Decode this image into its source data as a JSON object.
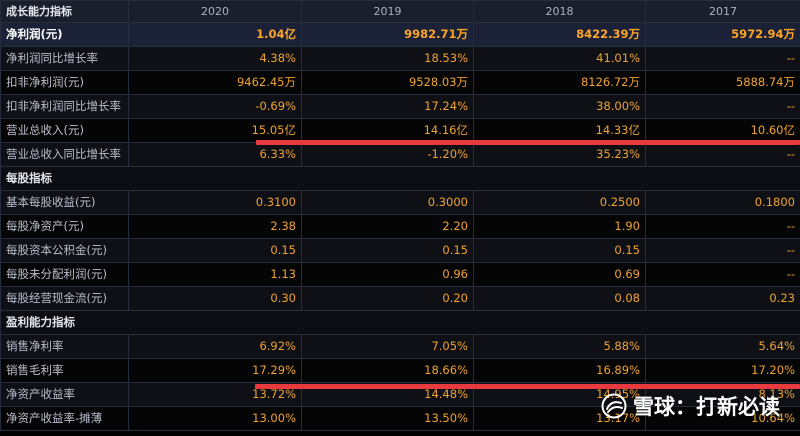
{
  "table": {
    "corner_label": "成长能力指标",
    "columns": [
      "2020",
      "2019",
      "2018",
      "2017"
    ],
    "rows": [
      {
        "type": "data",
        "highlight": true,
        "label": "净利润(元)",
        "values": [
          "1.04亿",
          "9982.71万",
          "8422.39万",
          "5972.94万"
        ]
      },
      {
        "type": "data",
        "label": "净利润同比增长率",
        "values": [
          "4.38%",
          "18.53%",
          "41.01%",
          "--"
        ]
      },
      {
        "type": "data",
        "label": "扣非净利润(元)",
        "values": [
          "9462.45万",
          "9528.03万",
          "8126.72万",
          "5888.74万"
        ]
      },
      {
        "type": "data",
        "label": "扣非净利润同比增长率",
        "values": [
          "-0.69%",
          "17.24%",
          "38.00%",
          "--"
        ]
      },
      {
        "type": "data",
        "label": "营业总收入(元)",
        "values": [
          "15.05亿",
          "14.16亿",
          "14.33亿",
          "10.60亿"
        ]
      },
      {
        "type": "data",
        "label": "营业总收入同比增长率",
        "values": [
          "6.33%",
          "-1.20%",
          "35.23%",
          "--"
        ]
      },
      {
        "type": "section",
        "label": "每股指标"
      },
      {
        "type": "data",
        "label": "基本每股收益(元)",
        "values": [
          "0.3100",
          "0.3000",
          "0.2500",
          "0.1800"
        ]
      },
      {
        "type": "data",
        "label": "每股净资产(元)",
        "values": [
          "2.38",
          "2.20",
          "1.90",
          "--"
        ]
      },
      {
        "type": "data",
        "label": "每股资本公积金(元)",
        "values": [
          "0.15",
          "0.15",
          "0.15",
          "--"
        ]
      },
      {
        "type": "data",
        "label": "每股未分配利润(元)",
        "values": [
          "1.13",
          "0.96",
          "0.69",
          "--"
        ]
      },
      {
        "type": "data",
        "label": "每股经营现金流(元)",
        "values": [
          "0.30",
          "0.20",
          "0.08",
          "0.23"
        ]
      },
      {
        "type": "section",
        "label": "盈利能力指标"
      },
      {
        "type": "data",
        "label": "销售净利率",
        "values": [
          "6.92%",
          "7.05%",
          "5.88%",
          "5.64%"
        ]
      },
      {
        "type": "data",
        "label": "销售毛利率",
        "values": [
          "17.29%",
          "18.66%",
          "16.89%",
          "17.20%"
        ]
      },
      {
        "type": "data",
        "label": "净资产收益率",
        "values": [
          "13.72%",
          "14.48%",
          "14.95%",
          "8.13%"
        ]
      },
      {
        "type": "data",
        "label": "净资产收益率-摊薄",
        "values": [
          "13.00%",
          "13.50%",
          "13.17%",
          "10.64%"
        ]
      }
    ]
  },
  "watermark": {
    "icon": "snowball-logo-icon",
    "text": "雪球：打新必读"
  },
  "colors": {
    "background": "#000000",
    "header_bg": "#1a1f2b",
    "value_text": "#f0a331",
    "label_text": "#b9bfcc",
    "annotation_line": "#e83a3f"
  }
}
